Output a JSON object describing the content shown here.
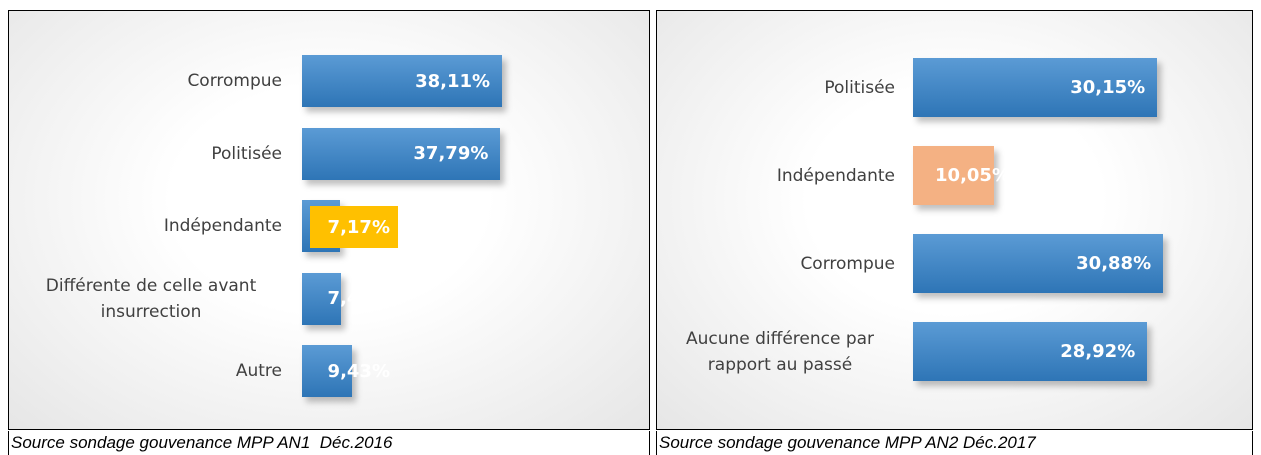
{
  "chart_data": [
    {
      "type": "barh",
      "categories": [
        "Corrompue",
        "Politisée",
        "Indépendante",
        "Différente  de celle avant insurrection",
        "Autre"
      ],
      "values": [
        38.11,
        37.79,
        7.17,
        7.49,
        9.43
      ],
      "value_labels": [
        "38,11%",
        "37,79%",
        "7,17%",
        "7,49%",
        "9,43%"
      ],
      "colors": [
        "#3f86cc",
        "#3f86cc",
        "#3f86cc",
        "#3f86cc",
        "#3f86cc"
      ],
      "value_label_backgrounds": [
        null,
        null,
        "#ffc000",
        null,
        null
      ],
      "caption": "Source sondage gouvenance MPP AN1  Déc.2016"
    },
    {
      "type": "barh",
      "categories": [
        "Politisée",
        "Indépendante",
        "Corrompue",
        "Aucune différence par rapport au passé"
      ],
      "values": [
        30.15,
        10.05,
        30.88,
        28.92
      ],
      "value_labels": [
        "30,15%",
        "10,05%",
        "30,88%",
        "28,92%"
      ],
      "colors": [
        "#3f86cc",
        "#f4b183",
        "#3f86cc",
        "#3f86cc"
      ],
      "value_label_backgrounds": [
        null,
        null,
        null,
        null
      ],
      "caption": "Source sondage gouvenance MPP AN2 Déc.2017"
    }
  ]
}
